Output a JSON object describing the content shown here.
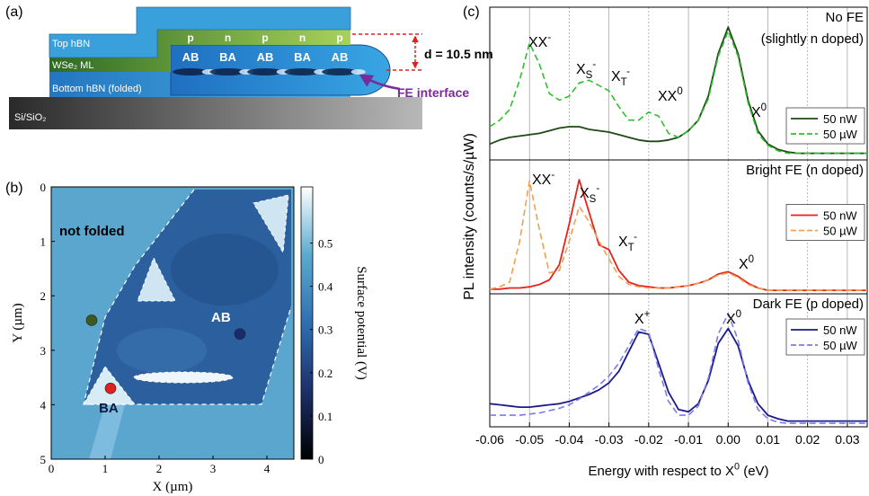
{
  "panel_labels": [
    "(a)",
    "(b)",
    "(c)"
  ],
  "schematic": {
    "layers": [
      "Top hBN",
      "WSe₂ ML",
      "Bottom hBN (folded)",
      "Si/SiO₂"
    ],
    "doping": [
      "p",
      "n",
      "p",
      "n",
      "p"
    ],
    "stacking": [
      "AB",
      "BA",
      "AB",
      "BA",
      "AB"
    ],
    "thickness": "d = 10.5 nm",
    "interface": "FE interface"
  },
  "chart_data": [
    {
      "type": "map",
      "xlabel": "X (µm)",
      "ylabel": "Y (µm)",
      "xlim": [
        0,
        4.5
      ],
      "ylim": [
        0,
        5
      ],
      "y_inverted": true,
      "xticks": [
        0,
        1,
        2,
        3,
        4
      ],
      "yticks": [
        0,
        1,
        2,
        3,
        4,
        5
      ],
      "colorbar": {
        "label": "Surface potential (V)",
        "lim": [
          0,
          0.63
        ],
        "ticks": [
          0,
          0.1,
          0.2,
          0.3,
          0.4,
          0.5
        ],
        "colors": [
          "#000000",
          "#1d2f6b",
          "#2f6fb0",
          "#5aaad0",
          "#ffffff"
        ]
      },
      "annotations": [
        "not folded",
        "AB",
        "BA"
      ],
      "points": {
        "x": [
          0.75,
          3.5,
          1.1
        ],
        "y": [
          2.45,
          2.7,
          3.7
        ],
        "colors": [
          "#3d5a1e",
          "#1a2a6e",
          "#e02020"
        ]
      }
    },
    {
      "type": "line",
      "title": [
        "No FE",
        "(slightly n doped)"
      ],
      "ylabel": "PL intensity (counts/s/µW)",
      "x": [
        -0.06,
        -0.0575,
        -0.055,
        -0.0525,
        -0.05,
        -0.0475,
        -0.045,
        -0.0425,
        -0.04,
        -0.0375,
        -0.035,
        -0.0325,
        -0.03,
        -0.0275,
        -0.025,
        -0.0225,
        -0.02,
        -0.0175,
        -0.015,
        -0.0125,
        -0.01,
        -0.0075,
        -0.005,
        -0.0025,
        0,
        0.0025,
        0.005,
        0.0075,
        0.01,
        0.0125,
        0.015,
        0.0175,
        0.02,
        0.0225,
        0.025,
        0.0275,
        0.03,
        0.0325,
        0.035
      ],
      "series": [
        {
          "name": "50 nW",
          "color": "#1e4a14",
          "dashed": false,
          "values": [
            0.12,
            0.15,
            0.17,
            0.18,
            0.19,
            0.2,
            0.22,
            0.24,
            0.25,
            0.25,
            0.23,
            0.22,
            0.21,
            0.19,
            0.17,
            0.15,
            0.14,
            0.14,
            0.15,
            0.17,
            0.22,
            0.3,
            0.48,
            0.8,
            1.0,
            0.8,
            0.45,
            0.22,
            0.12,
            0.08,
            0.06,
            0.05,
            0.05,
            0.05,
            0.05,
            0.05,
            0.05,
            0.05,
            0.05
          ]
        },
        {
          "name": "50 µW",
          "color": "#2fbf2f",
          "dashed": true,
          "values": [
            0.25,
            0.3,
            0.38,
            0.6,
            0.88,
            0.72,
            0.5,
            0.45,
            0.48,
            0.58,
            0.6,
            0.56,
            0.52,
            0.4,
            0.3,
            0.3,
            0.36,
            0.33,
            0.2,
            0.17,
            0.22,
            0.3,
            0.46,
            0.78,
            0.97,
            0.78,
            0.43,
            0.2,
            0.11,
            0.07,
            0.05,
            0.05,
            0.05,
            0.05,
            0.05,
            0.05,
            0.05,
            0.05,
            0.05
          ]
        }
      ],
      "xlim": [
        -0.06,
        0.035
      ],
      "ylim": [
        0,
        1.15
      ],
      "xticks": [
        -0.06,
        -0.05,
        -0.04,
        -0.03,
        -0.02,
        -0.01,
        0,
        0.01,
        0.02,
        0.03
      ],
      "grid": true,
      "legend": "lower right",
      "annotations": [
        {
          "base": "XX",
          "sup": "-"
        },
        {
          "base": "X",
          "sub": "S",
          "sup": "-"
        },
        {
          "base": "X",
          "sub": "T",
          "sup": "-"
        },
        {
          "base": "XX",
          "sup": "0"
        },
        {
          "base": "X",
          "sup": "0"
        }
      ]
    },
    {
      "type": "line",
      "title": [
        "Bright FE (n doped)"
      ],
      "x": [
        -0.06,
        -0.0575,
        -0.055,
        -0.0525,
        -0.05,
        -0.0475,
        -0.045,
        -0.0425,
        -0.04,
        -0.0375,
        -0.035,
        -0.0325,
        -0.03,
        -0.0275,
        -0.025,
        -0.0225,
        -0.02,
        -0.0175,
        -0.015,
        -0.0125,
        -0.01,
        -0.0075,
        -0.005,
        -0.0025,
        0,
        0.0025,
        0.005,
        0.0075,
        0.01,
        0.0125,
        0.015,
        0.0175,
        0.02,
        0.0225,
        0.025,
        0.0275,
        0.03,
        0.0325,
        0.035
      ],
      "series": [
        {
          "name": "50 nW",
          "color": "#e8231b",
          "dashed": false,
          "values": [
            0.04,
            0.04,
            0.05,
            0.05,
            0.06,
            0.08,
            0.12,
            0.25,
            0.6,
            0.98,
            0.7,
            0.42,
            0.38,
            0.2,
            0.1,
            0.07,
            0.06,
            0.05,
            0.05,
            0.06,
            0.07,
            0.09,
            0.12,
            0.17,
            0.19,
            0.15,
            0.09,
            0.05,
            0.03,
            0.03,
            0.03,
            0.03,
            0.03,
            0.03,
            0.03,
            0.03,
            0.03,
            0.03,
            0.03
          ]
        },
        {
          "name": "50 µW",
          "color": "#f0a050",
          "dashed": true,
          "values": [
            0.04,
            0.06,
            0.1,
            0.45,
            0.97,
            0.55,
            0.18,
            0.2,
            0.45,
            0.75,
            0.62,
            0.45,
            0.3,
            0.15,
            0.08,
            0.06,
            0.05,
            0.05,
            0.05,
            0.06,
            0.07,
            0.09,
            0.12,
            0.16,
            0.18,
            0.14,
            0.08,
            0.05,
            0.03,
            0.03,
            0.03,
            0.03,
            0.03,
            0.03,
            0.03,
            0.03,
            0.03,
            0.03,
            0.03
          ]
        }
      ],
      "xlim": [
        -0.06,
        0.035
      ],
      "ylim": [
        0,
        1.15
      ],
      "xticks": [
        -0.06,
        -0.05,
        -0.04,
        -0.03,
        -0.02,
        -0.01,
        0,
        0.01,
        0.02,
        0.03
      ],
      "grid": true,
      "legend": "center right",
      "annotations": [
        {
          "base": "XX",
          "sup": "-"
        },
        {
          "base": "X",
          "sub": "S",
          "sup": "-"
        },
        {
          "base": "X",
          "sub": "T",
          "sup": "-"
        },
        {
          "base": "X",
          "sup": "0"
        }
      ]
    },
    {
      "type": "line",
      "title": [
        "Dark FE (p doped)"
      ],
      "xlabel": {
        "base": "Energy with respect to X",
        "sup": "0",
        "after": " (eV)"
      },
      "x": [
        -0.06,
        -0.0575,
        -0.055,
        -0.0525,
        -0.05,
        -0.0475,
        -0.045,
        -0.0425,
        -0.04,
        -0.0375,
        -0.035,
        -0.0325,
        -0.03,
        -0.0275,
        -0.025,
        -0.0225,
        -0.02,
        -0.0175,
        -0.015,
        -0.0125,
        -0.01,
        -0.0075,
        -0.005,
        -0.0025,
        0,
        0.0025,
        0.005,
        0.0075,
        0.01,
        0.0125,
        0.015,
        0.0175,
        0.02,
        0.0225,
        0.025,
        0.0275,
        0.03,
        0.0325,
        0.035
      ],
      "series": [
        {
          "name": "50 nW",
          "color": "#1a1a8c",
          "dashed": false,
          "values": [
            0.2,
            0.19,
            0.18,
            0.17,
            0.17,
            0.18,
            0.19,
            0.2,
            0.22,
            0.25,
            0.28,
            0.32,
            0.38,
            0.48,
            0.65,
            0.82,
            0.8,
            0.55,
            0.3,
            0.15,
            0.13,
            0.2,
            0.4,
            0.72,
            0.85,
            0.7,
            0.4,
            0.2,
            0.1,
            0.07,
            0.05,
            0.05,
            0.05,
            0.05,
            0.05,
            0.05,
            0.05,
            0.05,
            0.05
          ]
        },
        {
          "name": "50 µW",
          "color": "#7a7aee",
          "dashed": true,
          "values": [
            0.1,
            0.1,
            0.1,
            0.1,
            0.11,
            0.12,
            0.14,
            0.16,
            0.19,
            0.24,
            0.3,
            0.36,
            0.44,
            0.55,
            0.7,
            0.85,
            0.82,
            0.5,
            0.22,
            0.1,
            0.1,
            0.18,
            0.42,
            0.8,
            0.98,
            0.75,
            0.38,
            0.15,
            0.07,
            0.04,
            0.03,
            0.03,
            0.03,
            0.03,
            0.03,
            0.03,
            0.03,
            0.03,
            0.03
          ]
        }
      ],
      "xlim": [
        -0.06,
        0.035
      ],
      "ylim": [
        0,
        1.15
      ],
      "xticks": [
        -0.06,
        -0.05,
        -0.04,
        -0.03,
        -0.02,
        -0.01,
        {
          "value": 0,
          "label": "0.00"
        },
        0.01,
        0.02,
        0.03
      ],
      "grid": true,
      "legend": "upper right",
      "annotations": [
        {
          "base": "X",
          "sup": "+"
        },
        {
          "base": "X",
          "sup": "0"
        }
      ]
    }
  ]
}
